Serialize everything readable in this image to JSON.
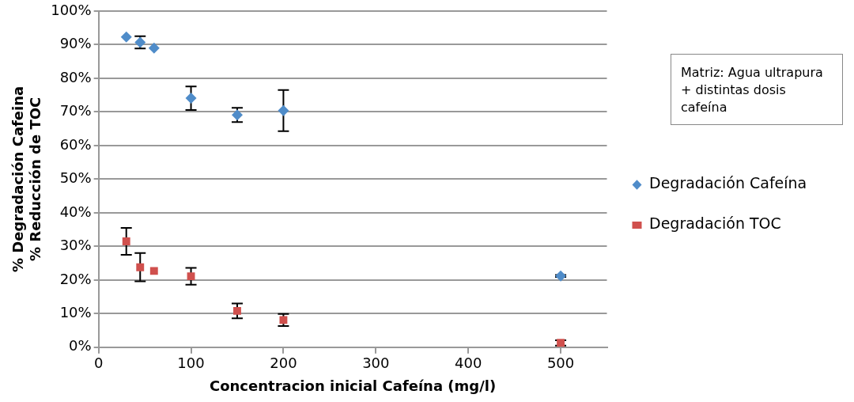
{
  "chart_data": {
    "type": "scatter",
    "xlabel": "Concentracion inicial Cafeína (mg/l)",
    "ylabel": "% Degradación Cafeina\n% Reducción de TOC",
    "x": [
      30,
      45,
      60,
      100,
      150,
      200,
      500
    ],
    "series": [
      {
        "name": "Degradación Cafeína",
        "color": "#4f8cc9",
        "marker": "diamond",
        "values": [
          92.3,
          90.7,
          89.0,
          74.1,
          69.1,
          70.4,
          21.2
        ],
        "errors": [
          null,
          1.8,
          null,
          3.5,
          2.1,
          6.1,
          0.3
        ]
      },
      {
        "name": "Degradación TOC",
        "color": "#d0504d",
        "marker": "square",
        "values": [
          31.5,
          23.8,
          22.7,
          21.1,
          10.8,
          8.1,
          1.3
        ],
        "errors": [
          4.0,
          4.2,
          null,
          2.5,
          2.2,
          1.8,
          0.8
        ]
      }
    ],
    "xlim": [
      0,
      550
    ],
    "xticks": [
      0,
      100,
      200,
      300,
      400,
      500
    ],
    "ylim": [
      0,
      100
    ],
    "yticks": [
      {
        "value": 0,
        "label": "0%"
      },
      {
        "value": 10,
        "label": "10%"
      },
      {
        "value": 20,
        "label": "20%"
      },
      {
        "value": 30,
        "label": "30%"
      },
      {
        "value": 40,
        "label": "40%"
      },
      {
        "value": 50,
        "label": "50%"
      },
      {
        "value": 60,
        "label": "60%"
      },
      {
        "value": 70,
        "label": "70%"
      },
      {
        "value": 80,
        "label": "80%"
      },
      {
        "value": 90,
        "label": "90%"
      },
      {
        "value": 100,
        "label": "100%"
      }
    ],
    "grid": "y",
    "legend": "right",
    "annotations": [
      "Matriz: Agua ultrapura + distintas dosis cafeína"
    ]
  }
}
